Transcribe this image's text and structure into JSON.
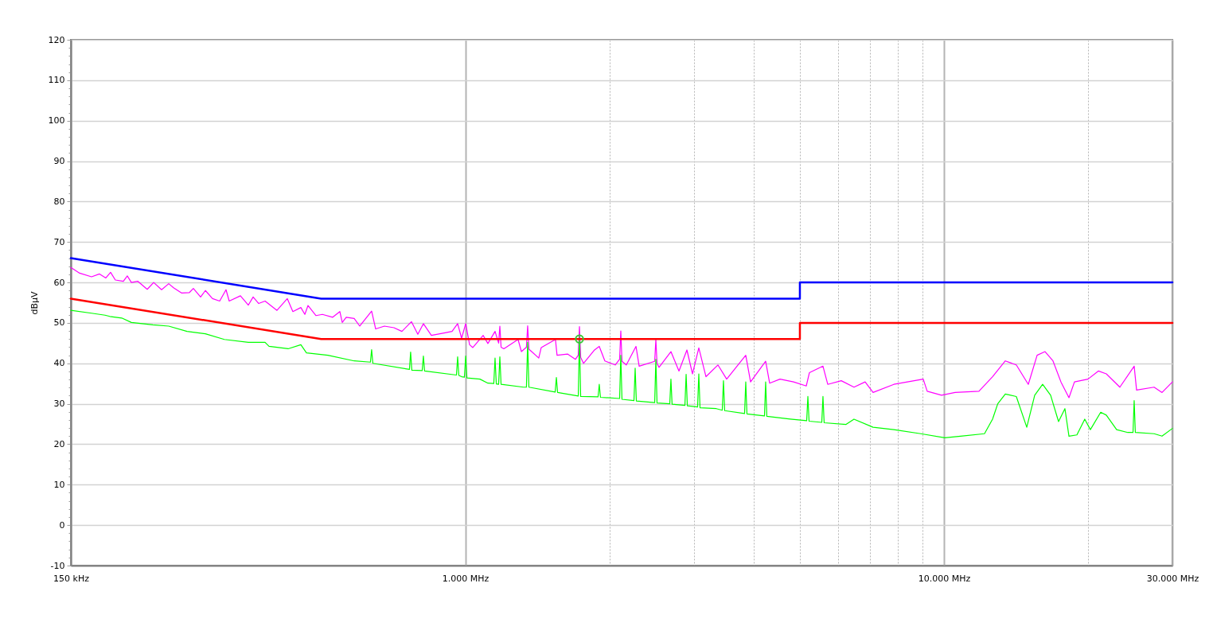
{
  "chart_data": {
    "type": "line",
    "ylabel": "dBµV",
    "log": "x",
    "grid": true,
    "xlim": [
      150,
      30000
    ],
    "ylim": [
      -10,
      120
    ],
    "xticks": [
      {
        "value": 150,
        "label": "150 kHz"
      },
      {
        "value": 1000,
        "label": "1.000 MHz"
      },
      {
        "value": 2000,
        "label": null
      },
      {
        "value": 3000,
        "label": null
      },
      {
        "value": 4000,
        "label": null
      },
      {
        "value": 5000,
        "label": null
      },
      {
        "value": 6000,
        "label": null
      },
      {
        "value": 7000,
        "label": null
      },
      {
        "value": 8000,
        "label": null
      },
      {
        "value": 9000,
        "label": null
      },
      {
        "value": 10000,
        "label": "10.000 MHz"
      },
      {
        "value": 20000,
        "label": null
      },
      {
        "value": 30000,
        "label": "30.000 MHz"
      }
    ],
    "yticks": [
      -10,
      {
        "value": -8,
        "label": null
      },
      {
        "value": -6,
        "label": null
      },
      {
        "value": -4,
        "label": null
      },
      {
        "value": -2,
        "label": null
      },
      0,
      {
        "value": 2,
        "label": null
      },
      {
        "value": 4,
        "label": null
      },
      {
        "value": 6,
        "label": null
      },
      {
        "value": 8,
        "label": null
      },
      10,
      {
        "value": 12,
        "label": null
      },
      {
        "value": 14,
        "label": null
      },
      {
        "value": 16,
        "label": null
      },
      {
        "value": 18,
        "label": null
      },
      20,
      {
        "value": 22,
        "label": null
      },
      {
        "value": 24,
        "label": null
      },
      {
        "value": 26,
        "label": null
      },
      {
        "value": 28,
        "label": null
      },
      30,
      {
        "value": 32,
        "label": null
      },
      {
        "value": 34,
        "label": null
      },
      {
        "value": 36,
        "label": null
      },
      {
        "value": 38,
        "label": null
      },
      40,
      {
        "value": 42,
        "label": null
      },
      {
        "value": 44,
        "label": null
      },
      {
        "value": 46,
        "label": null
      },
      {
        "value": 48,
        "label": null
      },
      50,
      {
        "value": 52,
        "label": null
      },
      {
        "value": 54,
        "label": null
      },
      {
        "value": 56,
        "label": null
      },
      {
        "value": 58,
        "label": null
      },
      60,
      {
        "value": 62,
        "label": null
      },
      {
        "value": 64,
        "label": null
      },
      {
        "value": 66,
        "label": null
      },
      {
        "value": 68,
        "label": null
      },
      70,
      {
        "value": 72,
        "label": null
      },
      {
        "value": 74,
        "label": null
      },
      {
        "value": 76,
        "label": null
      },
      {
        "value": 78,
        "label": null
      },
      80,
      {
        "value": 82,
        "label": null
      },
      {
        "value": 84,
        "label": null
      },
      {
        "value": 86,
        "label": null
      },
      {
        "value": 88,
        "label": null
      },
      90,
      {
        "value": 92,
        "label": null
      },
      {
        "value": 94,
        "label": null
      },
      {
        "value": 96,
        "label": null
      },
      {
        "value": 98,
        "label": null
      },
      100,
      {
        "value": 102,
        "label": null
      },
      {
        "value": 104,
        "label": null
      },
      {
        "value": 106,
        "label": null
      },
      {
        "value": 108,
        "label": null
      },
      110,
      {
        "value": 112,
        "label": null
      },
      {
        "value": 114,
        "label": null
      },
      {
        "value": 116,
        "label": null
      },
      {
        "value": 118,
        "label": null
      },
      120
    ],
    "series": [
      {
        "color": "#ff00ff",
        "x": [
          150,
          156.5,
          165.7,
          172.2,
          177.5,
          181.6,
          185.8,
          193.1,
          196.8,
          200.7,
          206.9,
          216.6,
          223.4,
          232.1,
          240.2,
          245.8,
          255.4,
          265.3,
          270.4,
          280,
          286.5,
          296.5,
          306.9,
          316.4,
          321.3,
          339.1,
          352.3,
          360.5,
          370.3,
          381.8,
          404.3,
          424.9,
          436.4,
          453.5,
          462.3,
          469.4,
          487.8,
          503,
          528.6,
          547,
          553.4,
          564.1,
          586.1,
          602,
          637.4,
          649.9,
          677.8,
          709.7,
          737.3,
          772.1,
          796,
          817.6,
          849.5,
          903.2,
          938.4,
          964,
          982.6,
          1002,
          1021,
          1037,
          1090,
          1115,
          1154,
          1174,
          1181,
          1188,
          1204,
          1289,
          1310,
          1342,
          1350,
          1358,
          1376,
          1424,
          1441,
          1543,
          1555,
          1635,
          1699,
          1722,
          1732,
          1742,
          1766,
          1862,
          1905,
          1957,
          2057,
          2101,
          2113,
          2125,
          2170,
          2273,
          2308,
          2487,
          2501,
          2515,
          2539,
          2689,
          2795,
          2904,
          2983,
          3075,
          3183,
          3371,
          3516,
          3854,
          3944,
          4241,
          4323,
          4544,
          4850,
          5156,
          5235,
          5587,
          5717,
          6101,
          6486,
          6843,
          7110,
          7856,
          9049,
          9224,
          9883,
          10550,
          11830,
          12630,
          13430,
          14160,
          15000,
          15650,
          16260,
          16890,
          17550,
          18240,
          18730,
          19990,
          21010,
          21830,
          23300,
          24960,
          25250,
          27470,
          28540,
          30000
        ],
        "values": [
          63.7,
          62.3,
          61.4,
          62.1,
          61.1,
          62.5,
          60.6,
          60.3,
          61.6,
          60.0,
          60.3,
          58.3,
          60.0,
          58.2,
          59.7,
          58.7,
          57.4,
          57.5,
          58.5,
          56.4,
          58.0,
          56.0,
          55.4,
          58.2,
          55.4,
          56.7,
          54.4,
          56.4,
          54.8,
          55.4,
          53.1,
          56.0,
          52.8,
          53.8,
          52.1,
          54.3,
          51.8,
          52.1,
          51.4,
          52.8,
          50.1,
          51.4,
          51.1,
          49.2,
          52.9,
          48.5,
          49.2,
          48.8,
          47.9,
          50.3,
          47.2,
          49.8,
          46.9,
          47.5,
          47.9,
          49.8,
          46.2,
          49.8,
          44.6,
          43.9,
          46.9,
          44.9,
          47.9,
          45.0,
          49.2,
          44.0,
          43.6,
          45.9,
          42.9,
          44.0,
          49.3,
          43.5,
          42.9,
          41.3,
          43.9,
          45.9,
          42.0,
          42.3,
          41.0,
          42.0,
          49.1,
          41.5,
          40.0,
          43.3,
          44.2,
          40.6,
          39.6,
          41.0,
          48.0,
          40.5,
          39.6,
          44.2,
          39.3,
          40.5,
          45.9,
          40.0,
          39.0,
          42.9,
          38.1,
          43.3,
          37.4,
          43.8,
          36.7,
          39.6,
          36.1,
          42.0,
          35.4,
          40.5,
          35.1,
          36.1,
          35.4,
          34.4,
          37.7,
          39.3,
          34.8,
          35.7,
          34.1,
          35.4,
          32.8,
          34.8,
          36.1,
          33.1,
          32.1,
          32.8,
          33.1,
          36.7,
          40.6,
          39.6,
          34.8,
          42.0,
          42.9,
          40.6,
          35.4,
          31.5,
          35.4,
          36.1,
          38.1,
          37.4,
          34.1,
          39.3,
          33.4,
          34.1,
          32.8,
          35.4
        ]
      },
      {
        "color": "#00ff00",
        "x": [
          150,
          165.7,
          176.8,
          180.9,
          191.6,
          200.7,
          222.5,
          240.2,
          262.3,
          286.5,
          313.9,
          352.3,
          381.8,
          389.1,
          426.6,
          453.5,
          465.9,
          516.5,
          586.1,
          633.7,
          637.4,
          641.1,
          764.5,
          768.9,
          773.3,
          812.9,
          817.6,
          822.3,
          958.5,
          964,
          969.5,
          982.6,
          996,
          1002,
          1008,
          1073,
          1115,
          1147,
          1154,
          1161,
          1174,
          1181,
          1188,
          1324,
          1342,
          1350,
          1358,
          1541,
          1550,
          1559,
          1722,
          1732,
          1742,
          1894,
          1905,
          1916,
          2101,
          2113,
          2125,
          2251,
          2264,
          2277,
          2487,
          2501,
          2515,
          2674,
          2689,
          2704,
          2876,
          2893,
          2910,
          3057,
          3075,
          3093,
          3345,
          3442,
          3462,
          3482,
          3832,
          3854,
          3876,
          4217,
          4241,
          4265,
          4775,
          5166,
          5196,
          5226,
          5555,
          5587,
          5619,
          6244,
          6486,
          7110,
          7856,
          8946,
          10040,
          10830,
          12150,
          12630,
          12950,
          13430,
          14160,
          14890,
          15470,
          16070,
          16700,
          17350,
          17890,
          18240,
          18950,
          19680,
          20220,
          21250,
          21830,
          22940,
          24210,
          24820,
          24960,
          25100,
          27470,
          28540,
          30000
        ],
        "values": [
          53.1,
          52.4,
          51.9,
          51.6,
          51.2,
          50.1,
          49.5,
          49.2,
          47.9,
          47.3,
          45.9,
          45.2,
          45.2,
          44.2,
          43.6,
          44.6,
          42.6,
          42.0,
          40.6,
          40.3,
          43.4,
          40.0,
          38.5,
          42.8,
          38.3,
          38.2,
          41.8,
          38.1,
          37.1,
          41.6,
          37.0,
          36.7,
          36.6,
          41.8,
          36.4,
          36.1,
          35.1,
          35.0,
          41.3,
          34.9,
          34.8,
          41.6,
          34.8,
          34.1,
          34.1,
          45.2,
          34.1,
          32.9,
          36.5,
          32.8,
          31.9,
          46.5,
          31.8,
          31.7,
          34.8,
          31.6,
          31.3,
          42.0,
          31.1,
          30.8,
          38.8,
          30.7,
          30.3,
          41.0,
          30.2,
          30.0,
          36.1,
          29.9,
          29.6,
          37.3,
          29.5,
          29.2,
          37.4,
          29.0,
          28.8,
          28.4,
          35.7,
          28.3,
          27.6,
          35.4,
          27.5,
          27.0,
          35.4,
          26.9,
          26.2,
          25.8,
          31.8,
          25.7,
          25.4,
          31.8,
          25.3,
          24.9,
          26.2,
          24.2,
          23.6,
          22.6,
          21.6,
          22.0,
          22.6,
          26.2,
          30.0,
          32.4,
          31.8,
          24.2,
          32.1,
          34.8,
          32.1,
          25.6,
          28.8,
          22.0,
          22.3,
          26.2,
          23.6,
          27.9,
          27.2,
          23.6,
          22.9,
          22.9,
          30.8,
          22.9,
          22.6,
          22.0,
          23.9
        ]
      },
      {
        "color": "#0000ff",
        "x": [
          150,
          500,
          5000,
          5000,
          30000
        ],
        "values": [
          66,
          56,
          56,
          60,
          60
        ]
      },
      {
        "color": "#ff0000",
        "x": [
          150,
          500,
          5000,
          5000,
          30000
        ],
        "values": [
          56,
          46,
          46,
          50,
          50
        ]
      },
      {
        "type": "scatter",
        "marker": "circle",
        "color": "#33cc33",
        "x": [
          1732
        ],
        "values": [
          46
        ]
      }
    ]
  }
}
